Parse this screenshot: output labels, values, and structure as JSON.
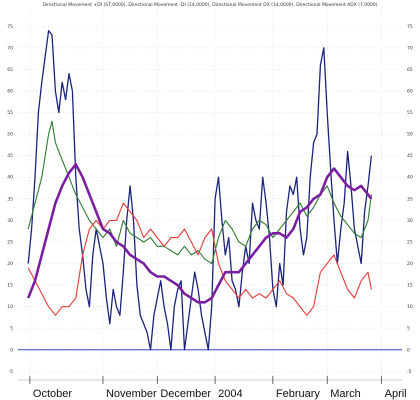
{
  "chart_data": {
    "type": "line",
    "title": "Directional Movement +DI (ST,0000), Directional Movement -DI (14,0000), Directional Movement DX (14,0000), Directional Movement ADX (7,0000)",
    "xlabel": "",
    "ylabel": "",
    "ylim": [
      -7,
      79
    ],
    "yticks": [
      -5,
      0,
      5,
      10,
      15,
      20,
      25,
      30,
      35,
      40,
      45,
      50,
      55,
      60,
      65,
      70,
      75
    ],
    "x_tick_labels": [
      {
        "label": "October",
        "t": 0.5
      },
      {
        "label": "November",
        "t": 22
      },
      {
        "label": "December",
        "t": 38
      },
      {
        "label": "2004",
        "t": 55
      },
      {
        "label": "February",
        "t": 72
      },
      {
        "label": "March",
        "t": 88
      },
      {
        "label": "April",
        "t": 104
      }
    ],
    "x_range": [
      -3,
      110
    ],
    "grid": true,
    "zero_line_color": "#3344cc",
    "series": [
      {
        "color": "#1a237e",
        "values": [
          [
            0,
            20
          ],
          [
            1,
            28
          ],
          [
            2,
            40
          ],
          [
            3,
            55
          ],
          [
            4,
            62
          ],
          [
            5,
            68
          ],
          [
            6,
            74
          ],
          [
            7,
            73
          ],
          [
            8,
            60
          ],
          [
            9,
            55
          ],
          [
            10,
            62
          ],
          [
            11,
            58
          ],
          [
            12,
            64
          ],
          [
            13,
            60
          ],
          [
            14,
            40
          ],
          [
            15,
            28
          ],
          [
            16,
            22
          ],
          [
            17,
            14
          ],
          [
            18,
            10
          ],
          [
            19,
            22
          ],
          [
            20,
            28
          ],
          [
            21,
            24
          ],
          [
            22,
            20
          ],
          [
            23,
            12
          ],
          [
            24,
            6
          ],
          [
            25,
            14
          ],
          [
            26,
            10
          ],
          [
            27,
            8
          ],
          [
            28,
            18
          ],
          [
            29,
            30
          ],
          [
            30,
            38
          ],
          [
            31,
            30
          ],
          [
            32,
            15
          ],
          [
            33,
            8
          ],
          [
            34,
            6
          ],
          [
            35,
            4
          ],
          [
            36,
            0
          ],
          [
            37,
            8
          ],
          [
            38,
            12
          ],
          [
            39,
            16
          ],
          [
            40,
            10
          ],
          [
            41,
            6
          ],
          [
            42,
            0
          ],
          [
            43,
            10
          ],
          [
            44,
            14
          ],
          [
            45,
            16
          ],
          [
            46,
            0
          ],
          [
            47,
            6
          ],
          [
            48,
            12
          ],
          [
            49,
            18
          ],
          [
            50,
            14
          ],
          [
            51,
            8
          ],
          [
            52,
            4
          ],
          [
            53,
            0
          ],
          [
            54,
            10
          ],
          [
            55,
            35
          ],
          [
            56,
            40
          ],
          [
            57,
            30
          ],
          [
            58,
            22
          ],
          [
            59,
            26
          ],
          [
            60,
            16
          ],
          [
            61,
            14
          ],
          [
            62,
            10
          ],
          [
            63,
            18
          ],
          [
            64,
            24
          ],
          [
            65,
            20
          ],
          [
            66,
            34
          ],
          [
            67,
            30
          ],
          [
            68,
            28
          ],
          [
            69,
            40
          ],
          [
            70,
            34
          ],
          [
            71,
            26
          ],
          [
            72,
            14
          ],
          [
            73,
            10
          ],
          [
            74,
            20
          ],
          [
            75,
            15
          ],
          [
            76,
            32
          ],
          [
            77,
            38
          ],
          [
            78,
            36
          ],
          [
            79,
            40
          ],
          [
            80,
            28
          ],
          [
            81,
            22
          ],
          [
            82,
            26
          ],
          [
            83,
            40
          ],
          [
            84,
            48
          ],
          [
            85,
            50
          ],
          [
            86,
            66
          ],
          [
            87,
            70
          ],
          [
            88,
            55
          ],
          [
            89,
            42
          ],
          [
            90,
            30
          ],
          [
            91,
            20
          ],
          [
            92,
            28
          ],
          [
            93,
            34
          ],
          [
            94,
            46
          ],
          [
            95,
            38
          ],
          [
            96,
            28
          ],
          [
            97,
            24
          ],
          [
            98,
            20
          ],
          [
            99,
            32
          ],
          [
            100,
            38
          ],
          [
            101,
            45
          ]
        ]
      },
      {
        "color": "#2e7d32",
        "values": [
          [
            0,
            28
          ],
          [
            2,
            34
          ],
          [
            4,
            40
          ],
          [
            6,
            50
          ],
          [
            7,
            53
          ],
          [
            8,
            48
          ],
          [
            10,
            44
          ],
          [
            12,
            40
          ],
          [
            14,
            36
          ],
          [
            16,
            33
          ],
          [
            18,
            30
          ],
          [
            20,
            28
          ],
          [
            22,
            26
          ],
          [
            24,
            28
          ],
          [
            26,
            24
          ],
          [
            28,
            30
          ],
          [
            30,
            27
          ],
          [
            32,
            26
          ],
          [
            34,
            25
          ],
          [
            36,
            26
          ],
          [
            38,
            24
          ],
          [
            40,
            24
          ],
          [
            42,
            23
          ],
          [
            44,
            22
          ],
          [
            46,
            24
          ],
          [
            48,
            22
          ],
          [
            50,
            23
          ],
          [
            52,
            21
          ],
          [
            54,
            20
          ],
          [
            56,
            26
          ],
          [
            58,
            30
          ],
          [
            60,
            28
          ],
          [
            62,
            25
          ],
          [
            64,
            24
          ],
          [
            66,
            28
          ],
          [
            68,
            30
          ],
          [
            70,
            29
          ],
          [
            72,
            26
          ],
          [
            74,
            28
          ],
          [
            76,
            30
          ],
          [
            78,
            32
          ],
          [
            80,
            34
          ],
          [
            82,
            31
          ],
          [
            84,
            33
          ],
          [
            86,
            36
          ],
          [
            88,
            38
          ],
          [
            90,
            34
          ],
          [
            92,
            31
          ],
          [
            94,
            29
          ],
          [
            96,
            27
          ],
          [
            98,
            26
          ],
          [
            100,
            30
          ],
          [
            101,
            36
          ]
        ]
      },
      {
        "color": "#e53935",
        "values": [
          [
            0,
            19
          ],
          [
            2,
            16
          ],
          [
            4,
            13
          ],
          [
            6,
            10
          ],
          [
            8,
            8
          ],
          [
            10,
            10
          ],
          [
            12,
            10
          ],
          [
            14,
            12
          ],
          [
            16,
            22
          ],
          [
            18,
            28
          ],
          [
            20,
            30
          ],
          [
            22,
            28
          ],
          [
            24,
            30
          ],
          [
            26,
            30
          ],
          [
            28,
            34
          ],
          [
            30,
            32
          ],
          [
            32,
            30
          ],
          [
            34,
            26
          ],
          [
            36,
            28
          ],
          [
            38,
            26
          ],
          [
            40,
            24
          ],
          [
            42,
            26
          ],
          [
            44,
            26
          ],
          [
            46,
            28
          ],
          [
            48,
            25
          ],
          [
            50,
            22
          ],
          [
            52,
            26
          ],
          [
            54,
            28
          ],
          [
            56,
            20
          ],
          [
            58,
            16
          ],
          [
            60,
            14
          ],
          [
            62,
            12
          ],
          [
            64,
            14
          ],
          [
            66,
            12
          ],
          [
            68,
            13
          ],
          [
            70,
            12
          ],
          [
            72,
            14
          ],
          [
            74,
            16
          ],
          [
            76,
            13
          ],
          [
            78,
            12
          ],
          [
            80,
            10
          ],
          [
            82,
            8
          ],
          [
            84,
            10
          ],
          [
            86,
            18
          ],
          [
            88,
            20
          ],
          [
            90,
            22
          ],
          [
            92,
            18
          ],
          [
            94,
            14
          ],
          [
            96,
            12
          ],
          [
            98,
            16
          ],
          [
            100,
            18
          ],
          [
            101,
            14
          ]
        ]
      },
      {
        "color": "#7b1fa2",
        "values": [
          [
            0,
            12
          ],
          [
            2,
            16
          ],
          [
            4,
            22
          ],
          [
            6,
            28
          ],
          [
            8,
            34
          ],
          [
            10,
            38
          ],
          [
            12,
            41
          ],
          [
            14,
            43
          ],
          [
            16,
            40
          ],
          [
            18,
            36
          ],
          [
            20,
            32
          ],
          [
            22,
            28
          ],
          [
            24,
            27
          ],
          [
            26,
            25
          ],
          [
            28,
            24
          ],
          [
            30,
            22
          ],
          [
            32,
            21
          ],
          [
            34,
            20
          ],
          [
            36,
            18
          ],
          [
            38,
            17
          ],
          [
            40,
            17
          ],
          [
            42,
            16
          ],
          [
            44,
            15
          ],
          [
            46,
            13
          ],
          [
            48,
            12
          ],
          [
            50,
            11
          ],
          [
            52,
            11
          ],
          [
            54,
            12
          ],
          [
            56,
            15
          ],
          [
            58,
            18
          ],
          [
            60,
            18
          ],
          [
            62,
            18
          ],
          [
            64,
            20
          ],
          [
            66,
            22
          ],
          [
            68,
            24
          ],
          [
            70,
            26
          ],
          [
            72,
            27
          ],
          [
            74,
            27
          ],
          [
            76,
            26
          ],
          [
            78,
            28
          ],
          [
            80,
            32
          ],
          [
            82,
            33
          ],
          [
            84,
            35
          ],
          [
            86,
            36
          ],
          [
            88,
            40
          ],
          [
            90,
            42
          ],
          [
            92,
            40
          ],
          [
            94,
            38
          ],
          [
            96,
            37
          ],
          [
            98,
            38
          ],
          [
            100,
            36
          ],
          [
            101,
            35
          ]
        ]
      }
    ]
  }
}
